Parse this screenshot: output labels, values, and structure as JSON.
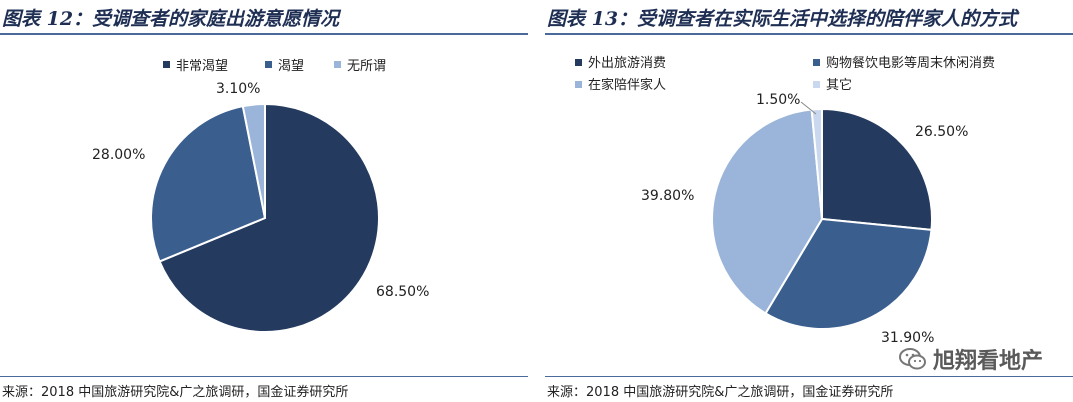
{
  "chart_data": [
    {
      "type": "pie",
      "title": "图表 12：受调查者的家庭出游意愿情况",
      "categories": [
        "非常渴望",
        "渴望",
        "无所谓"
      ],
      "values": [
        68.5,
        28.0,
        3.1
      ],
      "labels": [
        "68.50%",
        "28.00%",
        "3.10%"
      ],
      "colors": [
        "#243a5e",
        "#3a5f8f",
        "#9ab5d9"
      ],
      "legend": "top",
      "source": "来源：2018 中国旅游研究院&广之旅调研，国金证券研究所"
    },
    {
      "type": "pie",
      "title": "图表 13：受调查者在实际生活中选择的陪伴家人的方式",
      "categories": [
        "外出旅游消费",
        "购物餐饮电影等周末休闲消费",
        "在家陪伴家人",
        "其它"
      ],
      "values": [
        26.5,
        31.9,
        39.8,
        1.5
      ],
      "labels": [
        "26.50%",
        "31.90%",
        "39.80%",
        "1.50%"
      ],
      "colors": [
        "#243a5e",
        "#3a5f8f",
        "#9ab5d9",
        "#c9d8ee"
      ],
      "legend": "top",
      "source": "来源：2018 中国旅游研究院&广之旅调研，国金证券研究所"
    }
  ],
  "watermark": {
    "text": "旭翔看地产",
    "icon": "wechat-icon"
  }
}
